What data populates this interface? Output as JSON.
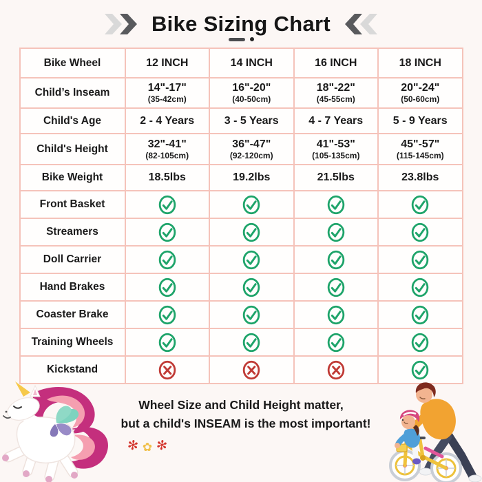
{
  "page": {
    "title": "Bike Sizing Chart"
  },
  "table": {
    "header": {
      "label": "Bike Wheel",
      "columns": [
        "12 INCH",
        "14 INCH",
        "16 INCH",
        "18 INCH"
      ]
    },
    "spec_rows": [
      {
        "label": "Child’s Inseam",
        "values": [
          "14\"-17\"",
          "16\"-20\"",
          "18\"-22\"",
          "20\"-24\""
        ],
        "subvalues": [
          "(35-42cm)",
          "(40-50cm)",
          "(45-55cm)",
          "(50-60cm)"
        ]
      },
      {
        "label": "Child's Age",
        "values": [
          "2 - 4 Years",
          "3 - 5 Years",
          "4 - 7 Years",
          "5 - 9 Years"
        ]
      },
      {
        "label": "Child's Height",
        "values": [
          "32\"-41\"",
          "36\"-47\"",
          "41\"-53\"",
          "45\"-57\""
        ],
        "subvalues": [
          "(82-105cm)",
          "(92-120cm)",
          "(105-135cm)",
          "(115-145cm)"
        ]
      },
      {
        "label": "Bike Weight",
        "values": [
          "18.5lbs",
          "19.2lbs",
          "21.5lbs",
          "23.8lbs"
        ]
      }
    ],
    "feature_rows": [
      {
        "label": "Front Basket",
        "values": [
          "yes",
          "yes",
          "yes",
          "yes"
        ]
      },
      {
        "label": "Streamers",
        "values": [
          "yes",
          "yes",
          "yes",
          "yes"
        ]
      },
      {
        "label": "Doll Carrier",
        "values": [
          "yes",
          "yes",
          "yes",
          "yes"
        ]
      },
      {
        "label": "Hand Brakes",
        "values": [
          "yes",
          "yes",
          "yes",
          "yes"
        ]
      },
      {
        "label": "Coaster Brake",
        "values": [
          "yes",
          "yes",
          "yes",
          "yes"
        ]
      },
      {
        "label": "Training Wheels",
        "values": [
          "yes",
          "yes",
          "yes",
          "yes"
        ]
      },
      {
        "label": "Kickstand",
        "values": [
          "no",
          "no",
          "no",
          "yes"
        ]
      }
    ]
  },
  "footer": {
    "line1": "Wheel Size and Child Height matter,",
    "line2": "but a child's INSEAM is the most important!"
  },
  "icons": {
    "check": "check-circle-icon",
    "cross": "cross-circle-icon",
    "flowers": [
      "✻",
      "✿",
      "✻"
    ]
  },
  "colors": {
    "background": "#fcf7f5",
    "table_border": "#f5c3ba",
    "cell_background": "#fffefd",
    "text": "#1a1a1a",
    "check_green": "#1ea46a",
    "cross_red": "#c03a35",
    "chevron_dark": "#595a5d",
    "chevron_light": "#d9d9d9",
    "flower_red": "#d3342c",
    "flower_yellow": "#f0c04a"
  },
  "chart_data": {
    "type": "table",
    "title": "Bike Sizing Chart",
    "columns": [
      "Bike Wheel",
      "12 INCH",
      "14 INCH",
      "16 INCH",
      "18 INCH"
    ],
    "rows": [
      [
        "Child’s Inseam",
        "14\"-17\" (35-42cm)",
        "16\"-20\" (40-50cm)",
        "18\"-22\" (45-55cm)",
        "20\"-24\" (50-60cm)"
      ],
      [
        "Child's Age",
        "2 - 4 Years",
        "3 - 5 Years",
        "4 - 7 Years",
        "5 - 9 Years"
      ],
      [
        "Child's Height",
        "32\"-41\" (82-105cm)",
        "36\"-47\" (92-120cm)",
        "41\"-53\" (105-135cm)",
        "45\"-57\" (115-145cm)"
      ],
      [
        "Bike Weight",
        "18.5lbs",
        "19.2lbs",
        "21.5lbs",
        "23.8lbs"
      ],
      [
        "Front Basket",
        "yes",
        "yes",
        "yes",
        "yes"
      ],
      [
        "Streamers",
        "yes",
        "yes",
        "yes",
        "yes"
      ],
      [
        "Doll Carrier",
        "yes",
        "yes",
        "yes",
        "yes"
      ],
      [
        "Hand Brakes",
        "yes",
        "yes",
        "yes",
        "yes"
      ],
      [
        "Coaster Brake",
        "yes",
        "yes",
        "yes",
        "yes"
      ],
      [
        "Training Wheels",
        "yes",
        "yes",
        "yes",
        "yes"
      ],
      [
        "Kickstand",
        "no",
        "no",
        "no",
        "yes"
      ]
    ]
  }
}
